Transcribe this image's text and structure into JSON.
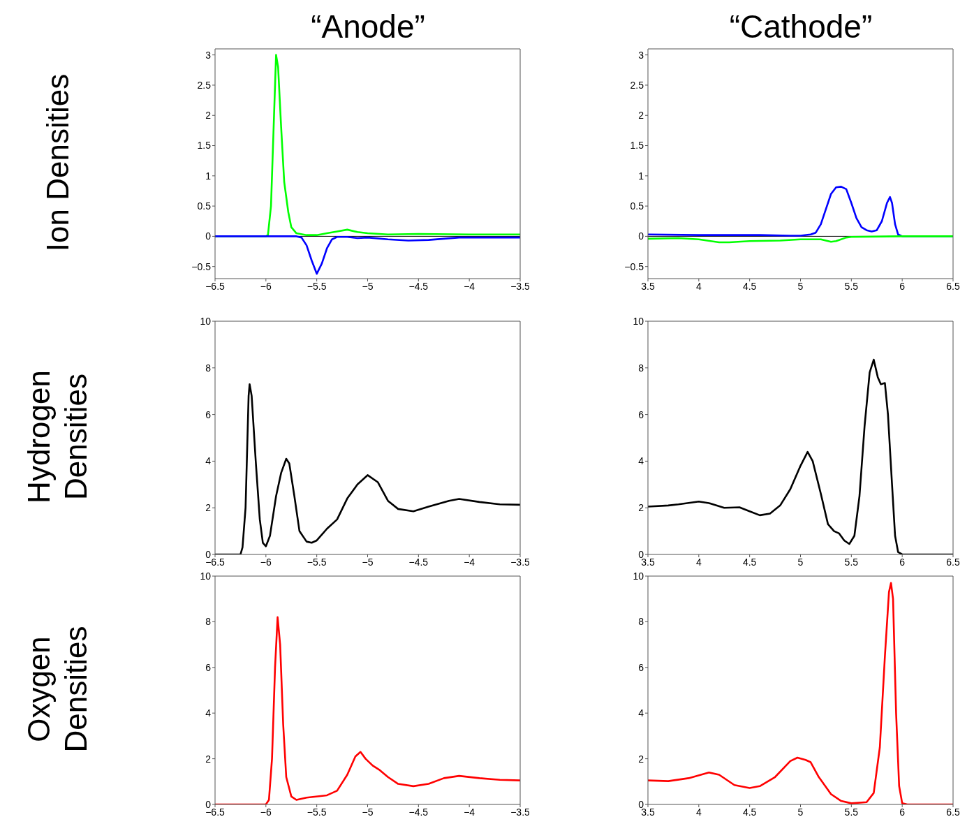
{
  "chart_data": [
    {
      "type": "line",
      "title": "“Anode”",
      "ylabel": "Ion Densities",
      "xlim": [
        -6.5,
        -3.5
      ],
      "xticks": [
        -6.5,
        -6,
        -5.5,
        -5,
        -4.5,
        -4,
        -3.5
      ],
      "ylim": [
        -0.7,
        3.1
      ],
      "yticks": [
        -0.5,
        0,
        0.5,
        1,
        1.5,
        2,
        2.5,
        3
      ],
      "ref_lines": [
        {
          "axis": "y",
          "value": 0,
          "color": "#000000"
        }
      ],
      "series": [
        {
          "color": "#00ff00",
          "x": [
            -6.5,
            -6.0,
            -5.98,
            -5.95,
            -5.92,
            -5.9,
            -5.88,
            -5.85,
            -5.82,
            -5.78,
            -5.75,
            -5.7,
            -5.6,
            -5.5,
            -5.4,
            -5.3,
            -5.2,
            -5.1,
            -5.0,
            -4.8,
            -4.5,
            -4.0,
            -3.5
          ],
          "values": [
            0,
            0,
            0.02,
            0.5,
            2.0,
            3.0,
            2.8,
            1.8,
            0.9,
            0.4,
            0.15,
            0.05,
            0.02,
            0.02,
            0.05,
            0.08,
            0.11,
            0.07,
            0.05,
            0.03,
            0.04,
            0.03,
            0.03
          ]
        },
        {
          "color": "#0000ff",
          "x": [
            -6.5,
            -5.7,
            -5.65,
            -5.6,
            -5.55,
            -5.5,
            -5.45,
            -5.4,
            -5.35,
            -5.3,
            -5.2,
            -5.1,
            -5.0,
            -4.8,
            -4.6,
            -4.4,
            -4.1,
            -3.5
          ],
          "values": [
            0,
            0,
            -0.02,
            -0.15,
            -0.4,
            -0.62,
            -0.45,
            -0.2,
            -0.05,
            -0.01,
            -0.01,
            -0.03,
            -0.02,
            -0.05,
            -0.07,
            -0.06,
            -0.02,
            -0.02
          ]
        }
      ]
    },
    {
      "type": "line",
      "title": "“Cathode”",
      "xlim": [
        3.5,
        6.5
      ],
      "xticks": [
        3.5,
        4,
        4.5,
        5,
        5.5,
        6,
        6.5
      ],
      "ylim": [
        -0.7,
        3.1
      ],
      "yticks": [
        -0.5,
        0,
        0.5,
        1,
        1.5,
        2,
        2.5,
        3
      ],
      "ref_lines": [
        {
          "axis": "y",
          "value": 0,
          "color": "#000000"
        }
      ],
      "series": [
        {
          "color": "#0000ff",
          "x": [
            3.5,
            4,
            4.5,
            4.6,
            4.9,
            5.0,
            5.1,
            5.15,
            5.2,
            5.25,
            5.3,
            5.35,
            5.4,
            5.45,
            5.5,
            5.55,
            5.6,
            5.65,
            5.7,
            5.75,
            5.8,
            5.85,
            5.88,
            5.9,
            5.93,
            5.96,
            6.0,
            6.5
          ],
          "values": [
            0.03,
            0.02,
            0.02,
            0.02,
            0.01,
            0.01,
            0.03,
            0.06,
            0.2,
            0.45,
            0.7,
            0.81,
            0.82,
            0.78,
            0.55,
            0.3,
            0.15,
            0.1,
            0.08,
            0.1,
            0.25,
            0.55,
            0.65,
            0.55,
            0.2,
            0.03,
            0,
            0
          ]
        },
        {
          "color": "#00ff00",
          "x": [
            3.5,
            3.8,
            4.0,
            4.2,
            4.3,
            4.5,
            4.8,
            5.0,
            5.2,
            5.3,
            5.35,
            5.45,
            5.5,
            6.0,
            6.5
          ],
          "values": [
            -0.04,
            -0.03,
            -0.05,
            -0.1,
            -0.1,
            -0.08,
            -0.07,
            -0.05,
            -0.05,
            -0.09,
            -0.08,
            -0.02,
            -0.01,
            0,
            0
          ]
        }
      ]
    },
    {
      "type": "line",
      "ylabel": "Hydrogen Densities",
      "xlim": [
        -6.5,
        -3.5
      ],
      "xticks": [
        -6.5,
        -6,
        -5.5,
        -5,
        -4.5,
        -4,
        -3.5
      ],
      "ylim": [
        0,
        10
      ],
      "yticks": [
        0,
        2,
        4,
        6,
        8,
        10
      ],
      "series": [
        {
          "color": "#000000",
          "x": [
            -6.5,
            -6.25,
            -6.23,
            -6.2,
            -6.17,
            -6.16,
            -6.14,
            -6.1,
            -6.06,
            -6.03,
            -6.0,
            -5.96,
            -5.9,
            -5.85,
            -5.8,
            -5.77,
            -5.72,
            -5.67,
            -5.6,
            -5.55,
            -5.5,
            -5.4,
            -5.3,
            -5.2,
            -5.1,
            -5.0,
            -4.9,
            -4.8,
            -4.7,
            -4.55,
            -4.4,
            -4.2,
            -4.1,
            -3.9,
            -3.7,
            -3.5
          ],
          "values": [
            0,
            0,
            0.3,
            2,
            6.8,
            7.3,
            6.8,
            4,
            1.5,
            0.5,
            0.35,
            0.8,
            2.5,
            3.5,
            4.1,
            3.9,
            2.5,
            1.0,
            0.55,
            0.5,
            0.6,
            1.1,
            1.5,
            2.4,
            3.0,
            3.4,
            3.1,
            2.3,
            1.95,
            1.85,
            2.05,
            2.3,
            2.38,
            2.25,
            2.15,
            2.13
          ]
        }
      ]
    },
    {
      "type": "line",
      "xlim": [
        3.5,
        6.5
      ],
      "xticks": [
        3.5,
        4,
        4.5,
        5,
        5.5,
        6,
        6.5
      ],
      "ylim": [
        0,
        10
      ],
      "yticks": [
        0,
        2,
        4,
        6,
        8,
        10
      ],
      "series": [
        {
          "color": "#000000",
          "x": [
            3.5,
            3.7,
            3.8,
            4.0,
            4.1,
            4.25,
            4.4,
            4.5,
            4.6,
            4.7,
            4.8,
            4.9,
            5.0,
            5.07,
            5.12,
            5.2,
            5.27,
            5.33,
            5.38,
            5.43,
            5.48,
            5.53,
            5.58,
            5.63,
            5.68,
            5.72,
            5.76,
            5.79,
            5.83,
            5.86,
            5.9,
            5.93,
            5.96,
            6.0,
            6.5
          ],
          "values": [
            2.05,
            2.1,
            2.15,
            2.27,
            2.2,
            2.0,
            2.02,
            1.85,
            1.68,
            1.75,
            2.1,
            2.8,
            3.8,
            4.4,
            4.0,
            2.6,
            1.3,
            1.0,
            0.9,
            0.6,
            0.45,
            0.8,
            2.5,
            5.5,
            7.8,
            8.35,
            7.6,
            7.3,
            7.35,
            6.0,
            3.0,
            0.8,
            0.1,
            0,
            0
          ]
        }
      ]
    },
    {
      "type": "line",
      "ylabel": "Oxygen Densities",
      "xlim": [
        -6.5,
        -3.5
      ],
      "xticks": [
        -6.5,
        -6,
        -5.5,
        -5,
        -4.5,
        -4,
        -3.5
      ],
      "ylim": [
        0,
        10
      ],
      "yticks": [
        0,
        2,
        4,
        6,
        8,
        10
      ],
      "series": [
        {
          "color": "#ff0000",
          "x": [
            -6.5,
            -6.0,
            -5.97,
            -5.94,
            -5.91,
            -5.885,
            -5.86,
            -5.83,
            -5.8,
            -5.75,
            -5.7,
            -5.6,
            -5.4,
            -5.3,
            -5.2,
            -5.12,
            -5.07,
            -5.02,
            -4.95,
            -4.88,
            -4.8,
            -4.7,
            -4.55,
            -4.4,
            -4.25,
            -4.1,
            -3.9,
            -3.7,
            -3.5
          ],
          "values": [
            0,
            0,
            0.2,
            2,
            6,
            8.2,
            7,
            3.5,
            1.2,
            0.35,
            0.2,
            0.3,
            0.4,
            0.6,
            1.3,
            2.1,
            2.3,
            2.0,
            1.7,
            1.5,
            1.2,
            0.9,
            0.8,
            0.9,
            1.15,
            1.25,
            1.15,
            1.08,
            1.05
          ]
        }
      ]
    },
    {
      "type": "line",
      "xlim": [
        3.5,
        6.5
      ],
      "xticks": [
        3.5,
        4,
        4.5,
        5,
        5.5,
        6,
        6.5
      ],
      "ylim": [
        0,
        10
      ],
      "yticks": [
        0,
        2,
        4,
        6,
        8,
        10
      ],
      "series": [
        {
          "color": "#ff0000",
          "x": [
            3.5,
            3.7,
            3.9,
            4.1,
            4.2,
            4.35,
            4.5,
            4.6,
            4.75,
            4.9,
            4.97,
            5.05,
            5.1,
            5.18,
            5.3,
            5.4,
            5.5,
            5.65,
            5.72,
            5.78,
            5.83,
            5.87,
            5.89,
            5.91,
            5.94,
            5.97,
            6.0,
            6.05,
            6.5
          ],
          "values": [
            1.05,
            1.02,
            1.15,
            1.4,
            1.3,
            0.85,
            0.72,
            0.8,
            1.2,
            1.9,
            2.05,
            1.95,
            1.85,
            1.2,
            0.45,
            0.15,
            0.05,
            0.1,
            0.5,
            2.5,
            6.5,
            9.3,
            9.7,
            9,
            4,
            0.8,
            0.05,
            0,
            0
          ]
        }
      ]
    }
  ]
}
